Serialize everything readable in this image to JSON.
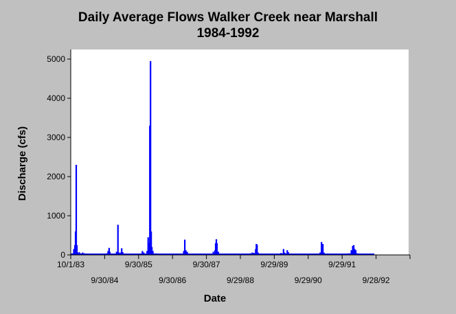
{
  "chart_data": {
    "type": "bar",
    "title_line1": "Daily Average Flows Walker Creek near Marshall",
    "title_line2": "1984-1992",
    "xlabel": "Date",
    "ylabel": "Discharge (cfs)",
    "ylim": [
      0,
      5000
    ],
    "yticks": [
      0,
      1000,
      2000,
      3000,
      4000,
      5000
    ],
    "xrange_years": [
      1983.75,
      1993.75
    ],
    "xtick_years": [
      1983.75,
      1984.75,
      1985.75,
      1986.75,
      1987.75,
      1988.75,
      1989.75,
      1990.75,
      1991.75,
      1992.75,
      1993.75
    ],
    "xtick_labels_top": [
      {
        "year": 1983.75,
        "label": "10/1/83"
      },
      {
        "year": 1985.75,
        "label": "9/30/85"
      },
      {
        "year": 1987.75,
        "label": "9/30/87"
      },
      {
        "year": 1989.75,
        "label": "9/29/89"
      },
      {
        "year": 1991.75,
        "label": "9/29/91"
      }
    ],
    "xtick_labels_bottom": [
      {
        "year": 1984.75,
        "label": "9/30/84"
      },
      {
        "year": 1986.75,
        "label": "9/30/86"
      },
      {
        "year": 1988.75,
        "label": "9/29/88"
      },
      {
        "year": 1990.75,
        "label": "9/29/90"
      },
      {
        "year": 1992.75,
        "label": "9/28/92"
      }
    ],
    "series_color": "#0000ff",
    "grid": false,
    "series": [
      {
        "values": [
          [
            1983.75,
            0
          ],
          [
            1983.8,
            40
          ],
          [
            1983.84,
            150
          ],
          [
            1983.87,
            250
          ],
          [
            1983.89,
            600
          ],
          [
            1983.91,
            2300
          ],
          [
            1983.93,
            250
          ],
          [
            1983.95,
            60
          ],
          [
            1984.0,
            70
          ],
          [
            1984.05,
            40
          ],
          [
            1984.1,
            60
          ],
          [
            1984.15,
            40
          ],
          [
            1984.2,
            20
          ],
          [
            1984.3,
            10
          ],
          [
            1984.5,
            5
          ],
          [
            1984.7,
            10
          ],
          [
            1984.8,
            40
          ],
          [
            1984.85,
            100
          ],
          [
            1984.88,
            180
          ],
          [
            1984.9,
            80
          ],
          [
            1984.95,
            30
          ],
          [
            1985.05,
            20
          ],
          [
            1985.1,
            80
          ],
          [
            1985.14,
            770
          ],
          [
            1985.17,
            60
          ],
          [
            1985.22,
            60
          ],
          [
            1985.25,
            170
          ],
          [
            1985.28,
            70
          ],
          [
            1985.35,
            20
          ],
          [
            1985.5,
            5
          ],
          [
            1985.7,
            5
          ],
          [
            1985.8,
            30
          ],
          [
            1985.86,
            100
          ],
          [
            1985.9,
            60
          ],
          [
            1986.0,
            100
          ],
          [
            1986.03,
            450
          ],
          [
            1986.06,
            300
          ],
          [
            1986.08,
            3300
          ],
          [
            1986.1,
            4950
          ],
          [
            1986.12,
            600
          ],
          [
            1986.14,
            200
          ],
          [
            1986.17,
            100
          ],
          [
            1986.25,
            40
          ],
          [
            1986.4,
            10
          ],
          [
            1986.6,
            5
          ],
          [
            1986.8,
            10
          ],
          [
            1987.0,
            30
          ],
          [
            1987.08,
            100
          ],
          [
            1987.11,
            390
          ],
          [
            1987.14,
            120
          ],
          [
            1987.18,
            80
          ],
          [
            1987.25,
            20
          ],
          [
            1987.5,
            5
          ],
          [
            1987.8,
            10
          ],
          [
            1987.95,
            80
          ],
          [
            1988.0,
            120
          ],
          [
            1988.02,
            300
          ],
          [
            1988.04,
            400
          ],
          [
            1988.06,
            300
          ],
          [
            1988.1,
            80
          ],
          [
            1988.2,
            20
          ],
          [
            1988.5,
            5
          ],
          [
            1988.8,
            10
          ],
          [
            1989.0,
            30
          ],
          [
            1989.05,
            40
          ],
          [
            1989.1,
            60
          ],
          [
            1989.15,
            50
          ],
          [
            1989.2,
            150
          ],
          [
            1989.22,
            280
          ],
          [
            1989.24,
            260
          ],
          [
            1989.27,
            60
          ],
          [
            1989.35,
            20
          ],
          [
            1989.6,
            10
          ],
          [
            1989.8,
            20
          ],
          [
            1989.95,
            50
          ],
          [
            1990.02,
            150
          ],
          [
            1990.05,
            60
          ],
          [
            1990.1,
            40
          ],
          [
            1990.13,
            120
          ],
          [
            1990.16,
            70
          ],
          [
            1990.25,
            20
          ],
          [
            1990.4,
            30
          ],
          [
            1990.55,
            5
          ],
          [
            1990.8,
            5
          ],
          [
            1991.0,
            20
          ],
          [
            1991.1,
            60
          ],
          [
            1991.14,
            330
          ],
          [
            1991.16,
            200
          ],
          [
            1991.18,
            280
          ],
          [
            1991.21,
            60
          ],
          [
            1991.3,
            20
          ],
          [
            1991.55,
            5
          ],
          [
            1991.8,
            10
          ],
          [
            1991.95,
            40
          ],
          [
            1992.02,
            120
          ],
          [
            1992.06,
            230
          ],
          [
            1992.09,
            250
          ],
          [
            1992.12,
            150
          ],
          [
            1992.15,
            120
          ],
          [
            1992.2,
            40
          ],
          [
            1992.35,
            10
          ],
          [
            1992.6,
            5
          ],
          [
            1992.7,
            0
          ]
        ]
      }
    ]
  }
}
